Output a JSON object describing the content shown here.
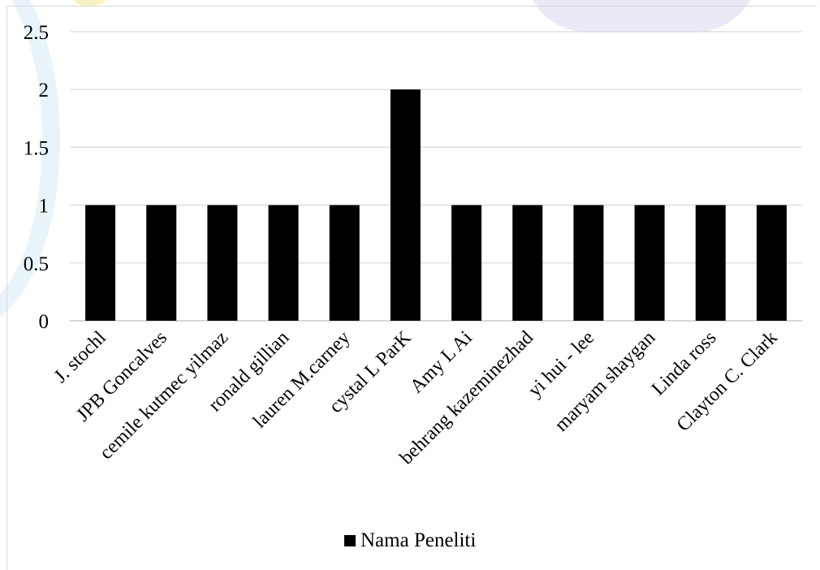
{
  "chart_data": {
    "type": "bar",
    "categories": [
      "J. stochl",
      "JPB Goncalves",
      "cemile kutmec yilmaz",
      "ronald gillian",
      "lauren M.carney",
      "cystal L ParK",
      "Amy L Ai",
      "behrang kazeminezhad",
      "yi hui - lee",
      "maryam shaygan",
      "Linda ross",
      "Clayton C. Clark"
    ],
    "series": [
      {
        "name": "Nama Peneliti",
        "values": [
          1,
          1,
          1,
          1,
          1,
          2,
          1,
          1,
          1,
          1,
          1,
          1
        ]
      }
    ],
    "yticks": [
      "0",
      "0.5",
      "1",
      "1.5",
      "2",
      "2.5"
    ],
    "ylim": [
      0,
      2.5
    ],
    "grid": true,
    "legend_position": "bottom",
    "bar_color": "#000000"
  }
}
